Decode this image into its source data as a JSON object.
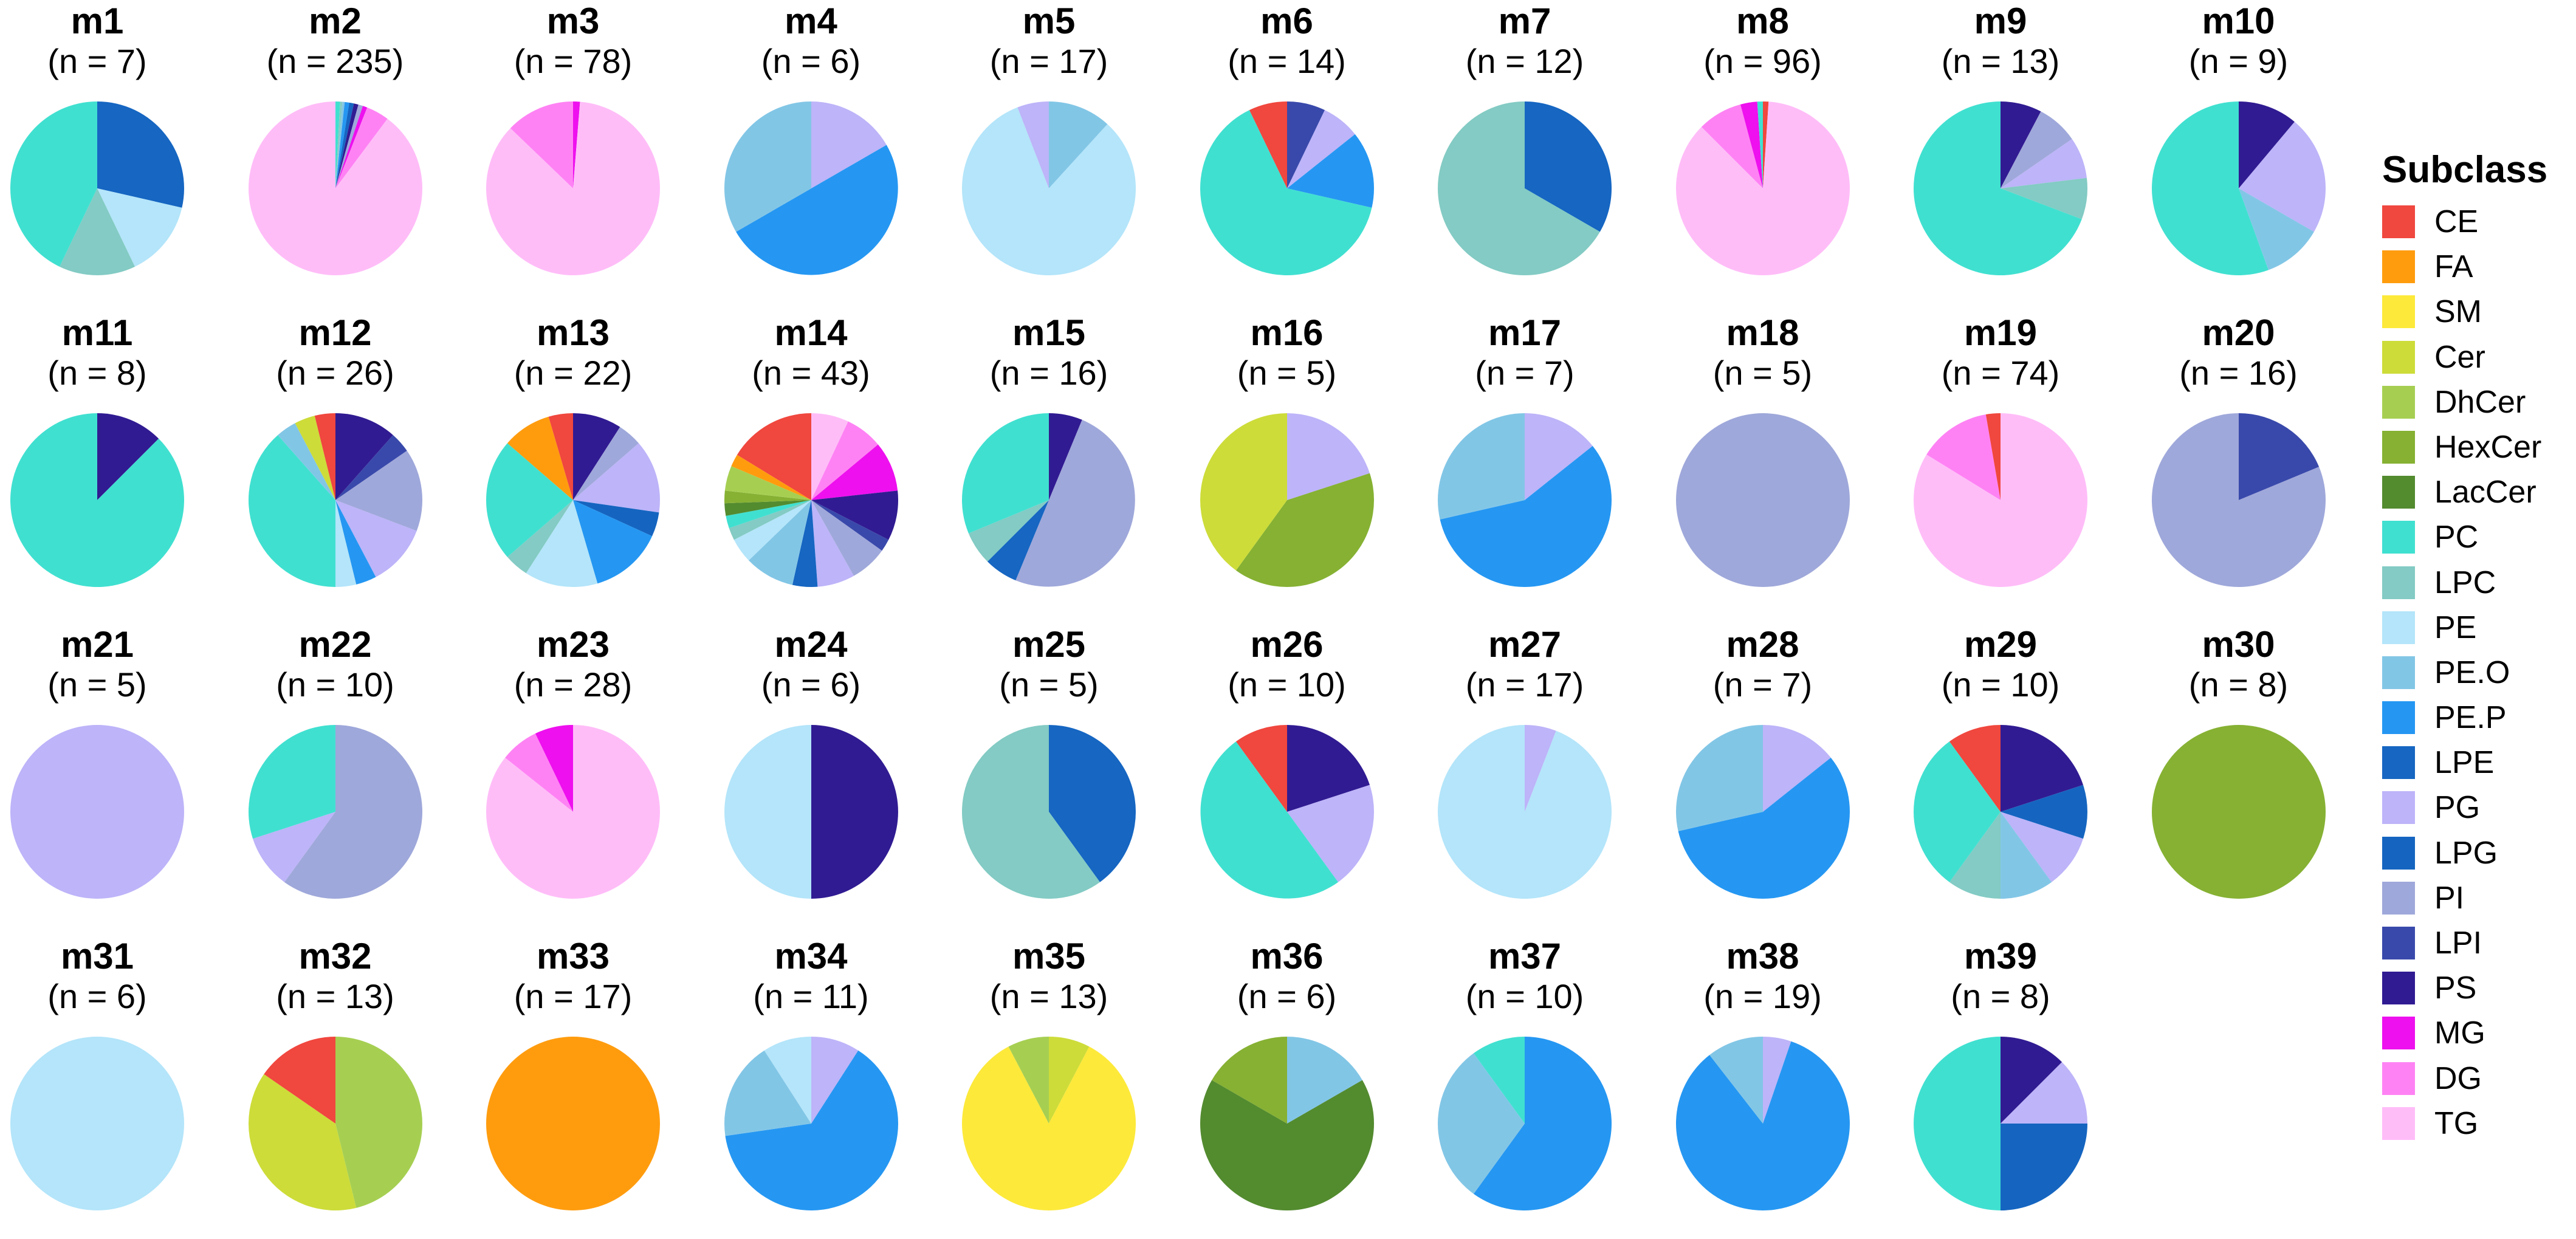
{
  "chart_data": {
    "type": "pie",
    "legend": {
      "title": "Subclass",
      "placement": "right",
      "items": [
        {
          "label": "CE",
          "color": "#f0473e"
        },
        {
          "label": "FA",
          "color": "#ff9c0e"
        },
        {
          "label": "SM",
          "color": "#fde93a"
        },
        {
          "label": "Cer",
          "color": "#cddc39"
        },
        {
          "label": "DhCer",
          "color": "#a6cf52"
        },
        {
          "label": "HexCer",
          "color": "#86b133"
        },
        {
          "label": "LacCer",
          "color": "#538b2f"
        },
        {
          "label": "PC",
          "color": "#40e0d0"
        },
        {
          "label": "LPC",
          "color": "#83cbc4"
        },
        {
          "label": "PE",
          "color": "#b4e5fa"
        },
        {
          "label": "PE.O",
          "color": "#82c6e6"
        },
        {
          "label": "PE.P",
          "color": "#2597f2"
        },
        {
          "label": "LPE",
          "color": "#1666c2"
        },
        {
          "label": "PG",
          "color": "#bdb4f9"
        },
        {
          "label": "LPG",
          "color": "#1565c0"
        },
        {
          "label": "PI",
          "color": "#9fa8da"
        },
        {
          "label": "LPI",
          "color": "#3949ab"
        },
        {
          "label": "PS",
          "color": "#311b92"
        },
        {
          "label": "MG",
          "color": "#ee10ee"
        },
        {
          "label": "DG",
          "color": "#ff82f4"
        },
        {
          "label": "TG",
          "color": "#ffbdf8"
        }
      ]
    },
    "charts": [
      {
        "title": "m1",
        "n": "(n = 7)",
        "slices": [
          {
            "s": "LPE",
            "v": 2
          },
          {
            "s": "PE",
            "v": 1
          },
          {
            "s": "LPC",
            "v": 1
          },
          {
            "s": "PC",
            "v": 3
          }
        ]
      },
      {
        "title": "m2",
        "n": "(n = 235)",
        "slices": [
          {
            "s": "PC",
            "v": 2
          },
          {
            "s": "LPC",
            "v": 1
          },
          {
            "s": "PE.O",
            "v": 1
          },
          {
            "s": "PE.P",
            "v": 2
          },
          {
            "s": "LPE",
            "v": 2
          },
          {
            "s": "PS",
            "v": 2
          },
          {
            "s": "PI",
            "v": 2
          },
          {
            "s": "MG",
            "v": 2
          },
          {
            "s": "DG",
            "v": 10
          },
          {
            "s": "TG",
            "v": 211
          }
        ]
      },
      {
        "title": "m3",
        "n": "(n = 78)",
        "slices": [
          {
            "s": "MG",
            "v": 1
          },
          {
            "s": "TG",
            "v": 67
          },
          {
            "s": "DG",
            "v": 10
          }
        ]
      },
      {
        "title": "m4",
        "n": "(n = 6)",
        "slices": [
          {
            "s": "PG",
            "v": 1
          },
          {
            "s": "PE.P",
            "v": 3
          },
          {
            "s": "PE.O",
            "v": 2
          }
        ]
      },
      {
        "title": "m5",
        "n": "(n = 17)",
        "slices": [
          {
            "s": "PE.O",
            "v": 2
          },
          {
            "s": "PE",
            "v": 14
          },
          {
            "s": "PG",
            "v": 1
          }
        ]
      },
      {
        "title": "m6",
        "n": "(n = 14)",
        "slices": [
          {
            "s": "LPI",
            "v": 1
          },
          {
            "s": "PG",
            "v": 1
          },
          {
            "s": "PE.P",
            "v": 2
          },
          {
            "s": "PC",
            "v": 9
          },
          {
            "s": "CE",
            "v": 1
          }
        ]
      },
      {
        "title": "m7",
        "n": "(n = 12)",
        "slices": [
          {
            "s": "LPE",
            "v": 4
          },
          {
            "s": "LPC",
            "v": 8
          }
        ]
      },
      {
        "title": "m8",
        "n": "(n = 96)",
        "slices": [
          {
            "s": "CE",
            "v": 1
          },
          {
            "s": "TG",
            "v": 83
          },
          {
            "s": "DG",
            "v": 8
          },
          {
            "s": "MG",
            "v": 3
          },
          {
            "s": "PC",
            "v": 1
          }
        ]
      },
      {
        "title": "m9",
        "n": "(n = 13)",
        "slices": [
          {
            "s": "PS",
            "v": 1
          },
          {
            "s": "PI",
            "v": 1
          },
          {
            "s": "PG",
            "v": 1
          },
          {
            "s": "LPC",
            "v": 1
          },
          {
            "s": "PC",
            "v": 9
          }
        ]
      },
      {
        "title": "m10",
        "n": "(n = 9)",
        "slices": [
          {
            "s": "PS",
            "v": 1
          },
          {
            "s": "PG",
            "v": 2
          },
          {
            "s": "PE.O",
            "v": 1
          },
          {
            "s": "PC",
            "v": 5
          }
        ]
      },
      {
        "title": "m11",
        "n": "(n = 8)",
        "slices": [
          {
            "s": "PS",
            "v": 1
          },
          {
            "s": "PC",
            "v": 7
          }
        ]
      },
      {
        "title": "m12",
        "n": "(n = 26)",
        "slices": [
          {
            "s": "PS",
            "v": 3
          },
          {
            "s": "LPI",
            "v": 1
          },
          {
            "s": "PI",
            "v": 4
          },
          {
            "s": "PG",
            "v": 3
          },
          {
            "s": "PE.P",
            "v": 1
          },
          {
            "s": "PE",
            "v": 1
          },
          {
            "s": "PC",
            "v": 10
          },
          {
            "s": "PE.O",
            "v": 1
          },
          {
            "s": "Cer",
            "v": 1
          },
          {
            "s": "CE",
            "v": 1
          }
        ]
      },
      {
        "title": "m13",
        "n": "(n = 22)",
        "slices": [
          {
            "s": "PS",
            "v": 2
          },
          {
            "s": "PI",
            "v": 1
          },
          {
            "s": "PG",
            "v": 3
          },
          {
            "s": "LPG",
            "v": 1
          },
          {
            "s": "PE.P",
            "v": 3
          },
          {
            "s": "PE",
            "v": 3
          },
          {
            "s": "LPC",
            "v": 1
          },
          {
            "s": "PC",
            "v": 5
          },
          {
            "s": "FA",
            "v": 2
          },
          {
            "s": "CE",
            "v": 1
          }
        ]
      },
      {
        "title": "m14",
        "n": "(n = 43)",
        "slices": [
          {
            "s": "TG",
            "v": 3
          },
          {
            "s": "DG",
            "v": 3
          },
          {
            "s": "MG",
            "v": 4
          },
          {
            "s": "PS",
            "v": 4
          },
          {
            "s": "LPI",
            "v": 1
          },
          {
            "s": "PI",
            "v": 3
          },
          {
            "s": "PG",
            "v": 3
          },
          {
            "s": "LPE",
            "v": 2
          },
          {
            "s": "PE.O",
            "v": 4
          },
          {
            "s": "PE",
            "v": 2
          },
          {
            "s": "LPC",
            "v": 1
          },
          {
            "s": "PC",
            "v": 1
          },
          {
            "s": "LacCer",
            "v": 1
          },
          {
            "s": "HexCer",
            "v": 1
          },
          {
            "s": "DhCer",
            "v": 2
          },
          {
            "s": "FA",
            "v": 1
          },
          {
            "s": "CE",
            "v": 7
          }
        ]
      },
      {
        "title": "m15",
        "n": "(n = 16)",
        "slices": [
          {
            "s": "PS",
            "v": 1
          },
          {
            "s": "PI",
            "v": 8
          },
          {
            "s": "LPE",
            "v": 1
          },
          {
            "s": "LPC",
            "v": 1
          },
          {
            "s": "PC",
            "v": 5
          }
        ]
      },
      {
        "title": "m16",
        "n": "(n = 5)",
        "slices": [
          {
            "s": "PG",
            "v": 1
          },
          {
            "s": "HexCer",
            "v": 2
          },
          {
            "s": "Cer",
            "v": 2
          }
        ]
      },
      {
        "title": "m17",
        "n": "(n = 7)",
        "slices": [
          {
            "s": "PG",
            "v": 1
          },
          {
            "s": "PE.P",
            "v": 4
          },
          {
            "s": "PE.O",
            "v": 2
          }
        ]
      },
      {
        "title": "m18",
        "n": "(n = 5)",
        "slices": [
          {
            "s": "PI",
            "v": 5
          }
        ]
      },
      {
        "title": "m19",
        "n": "(n = 74)",
        "slices": [
          {
            "s": "TG",
            "v": 62
          },
          {
            "s": "DG",
            "v": 10
          },
          {
            "s": "CE",
            "v": 2
          }
        ]
      },
      {
        "title": "m20",
        "n": "(n = 16)",
        "slices": [
          {
            "s": "LPI",
            "v": 3
          },
          {
            "s": "PI",
            "v": 13
          }
        ]
      },
      {
        "title": "m21",
        "n": "(n = 5)",
        "slices": [
          {
            "s": "PG",
            "v": 5
          }
        ]
      },
      {
        "title": "m22",
        "n": "(n = 10)",
        "slices": [
          {
            "s": "PI",
            "v": 6
          },
          {
            "s": "PG",
            "v": 1
          },
          {
            "s": "PC",
            "v": 3
          }
        ]
      },
      {
        "title": "m23",
        "n": "(n = 28)",
        "slices": [
          {
            "s": "TG",
            "v": 24
          },
          {
            "s": "DG",
            "v": 2
          },
          {
            "s": "MG",
            "v": 2
          }
        ]
      },
      {
        "title": "m24",
        "n": "(n = 6)",
        "slices": [
          {
            "s": "PS",
            "v": 3
          },
          {
            "s": "PE",
            "v": 3
          }
        ]
      },
      {
        "title": "m25",
        "n": "(n = 5)",
        "slices": [
          {
            "s": "LPE",
            "v": 2
          },
          {
            "s": "LPC",
            "v": 3
          }
        ]
      },
      {
        "title": "m26",
        "n": "(n = 10)",
        "slices": [
          {
            "s": "PS",
            "v": 2
          },
          {
            "s": "PG",
            "v": 2
          },
          {
            "s": "PC",
            "v": 5
          },
          {
            "s": "CE",
            "v": 1
          }
        ]
      },
      {
        "title": "m27",
        "n": "(n = 17)",
        "slices": [
          {
            "s": "PG",
            "v": 1
          },
          {
            "s": "PE",
            "v": 16
          }
        ]
      },
      {
        "title": "m28",
        "n": "(n = 7)",
        "slices": [
          {
            "s": "PG",
            "v": 1
          },
          {
            "s": "PE.P",
            "v": 4
          },
          {
            "s": "PE.O",
            "v": 2
          }
        ]
      },
      {
        "title": "m29",
        "n": "(n = 10)",
        "slices": [
          {
            "s": "PS",
            "v": 2
          },
          {
            "s": "LPG",
            "v": 1
          },
          {
            "s": "PG",
            "v": 1
          },
          {
            "s": "PE.O",
            "v": 1
          },
          {
            "s": "LPC",
            "v": 1
          },
          {
            "s": "PC",
            "v": 3
          },
          {
            "s": "CE",
            "v": 1
          }
        ]
      },
      {
        "title": "m30",
        "n": "(n = 8)",
        "slices": [
          {
            "s": "HexCer",
            "v": 8
          }
        ]
      },
      {
        "title": "m31",
        "n": "(n = 6)",
        "slices": [
          {
            "s": "PE",
            "v": 6
          }
        ]
      },
      {
        "title": "m32",
        "n": "(n = 13)",
        "slices": [
          {
            "s": "DhCer",
            "v": 6
          },
          {
            "s": "Cer",
            "v": 5
          },
          {
            "s": "CE",
            "v": 2
          }
        ]
      },
      {
        "title": "m33",
        "n": "(n = 17)",
        "slices": [
          {
            "s": "FA",
            "v": 17
          }
        ]
      },
      {
        "title": "m34",
        "n": "(n = 11)",
        "slices": [
          {
            "s": "PG",
            "v": 1
          },
          {
            "s": "PE.P",
            "v": 7
          },
          {
            "s": "PE.O",
            "v": 2
          },
          {
            "s": "PE",
            "v": 1
          }
        ]
      },
      {
        "title": "m35",
        "n": "(n = 13)",
        "slices": [
          {
            "s": "Cer",
            "v": 1
          },
          {
            "s": "SM",
            "v": 11
          },
          {
            "s": "DhCer",
            "v": 1
          }
        ]
      },
      {
        "title": "m36",
        "n": "(n = 6)",
        "slices": [
          {
            "s": "PE.O",
            "v": 1
          },
          {
            "s": "LacCer",
            "v": 4
          },
          {
            "s": "HexCer",
            "v": 1
          }
        ]
      },
      {
        "title": "m37",
        "n": "(n = 10)",
        "slices": [
          {
            "s": "PE.P",
            "v": 6
          },
          {
            "s": "PE.O",
            "v": 3
          },
          {
            "s": "PC",
            "v": 1
          }
        ]
      },
      {
        "title": "m38",
        "n": "(n = 19)",
        "slices": [
          {
            "s": "PG",
            "v": 1
          },
          {
            "s": "PE.P",
            "v": 16
          },
          {
            "s": "PE.O",
            "v": 2
          }
        ]
      },
      {
        "title": "m39",
        "n": "(n = 8)",
        "slices": [
          {
            "s": "PS",
            "v": 1
          },
          {
            "s": "PG",
            "v": 1
          },
          {
            "s": "LPG",
            "v": 2
          },
          {
            "s": "PC",
            "v": 4
          }
        ]
      }
    ]
  }
}
